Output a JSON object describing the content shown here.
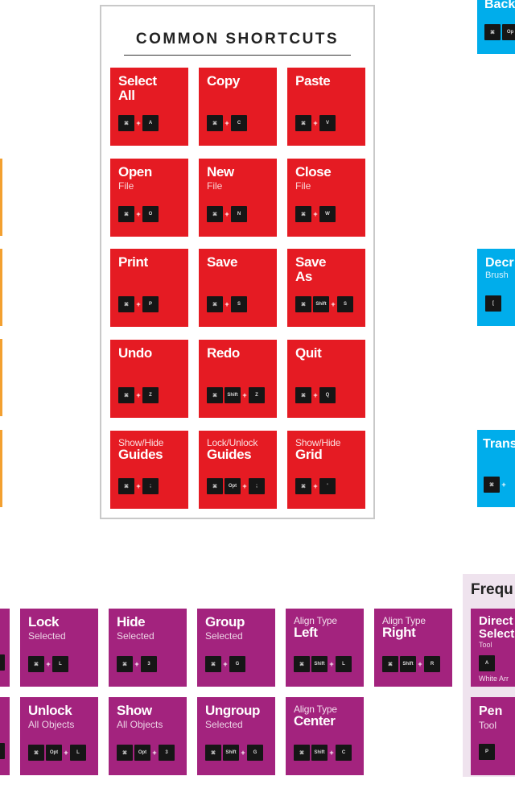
{
  "common": {
    "title": "COMMON SHORTCUTS",
    "tiles": [
      {
        "title": "Select All",
        "keys": [
          "⌘",
          "A"
        ]
      },
      {
        "title": "Copy",
        "keys": [
          "⌘",
          "C"
        ]
      },
      {
        "title": "Paste",
        "keys": [
          "⌘",
          "V"
        ]
      },
      {
        "title": "Open",
        "sub": "File",
        "keys": [
          "⌘",
          "O"
        ]
      },
      {
        "title": "New",
        "sub": "File",
        "keys": [
          "⌘",
          "N"
        ]
      },
      {
        "title": "Close",
        "sub": "File",
        "keys": [
          "⌘",
          "W"
        ]
      },
      {
        "title": "Print",
        "keys": [
          "⌘",
          "P"
        ]
      },
      {
        "title": "Save",
        "keys": [
          "⌘",
          "S"
        ]
      },
      {
        "title": "Save As",
        "keys": [
          "⌘",
          "Shift",
          "S"
        ]
      },
      {
        "title": "Undo",
        "keys": [
          "⌘",
          "Z"
        ]
      },
      {
        "title": "Redo",
        "keys": [
          "⌘",
          "Shift",
          "Z"
        ]
      },
      {
        "title": "Quit",
        "keys": [
          "⌘",
          "Q"
        ]
      },
      {
        "small": "Show/Hide",
        "title": "Guides",
        "keys": [
          "⌘",
          ";"
        ]
      },
      {
        "small": "Lock/Unlock",
        "title": "Guides",
        "keys": [
          "⌘",
          "Opt",
          ";"
        ]
      },
      {
        "small": "Show/Hide",
        "title": "Grid",
        "keys": [
          "⌘",
          "'"
        ]
      }
    ]
  },
  "objects": {
    "tiles": [
      {
        "title": "Lock",
        "sub": "Selected",
        "keys": [
          "⌘",
          "L"
        ]
      },
      {
        "title": "Hide",
        "sub": "Selected",
        "keys": [
          "⌘",
          "3"
        ]
      },
      {
        "title": "Group",
        "sub": "Selected",
        "keys": [
          "⌘",
          "G"
        ]
      },
      {
        "small": "Align Type",
        "title": "Left",
        "keys": [
          "⌘",
          "Shift",
          "L"
        ]
      },
      {
        "small": "Align Type",
        "title": "Right",
        "keys": [
          "⌘",
          "Shift",
          "R"
        ]
      },
      {
        "title": "Unlock",
        "sub": "All Objects",
        "keys": [
          "⌘",
          "Opt",
          "L"
        ]
      },
      {
        "title": "Show",
        "sub": "All Objects",
        "keys": [
          "⌘",
          "Opt",
          "3"
        ]
      },
      {
        "title": "Ungroup",
        "sub": "Selected",
        "keys": [
          "⌘",
          "Shift",
          "G"
        ]
      },
      {
        "small": "Align Type",
        "title": "Center",
        "keys": [
          "⌘",
          "Shift",
          "C"
        ]
      }
    ]
  },
  "edge": {
    "blue_1": "Back",
    "blue_2_title": "Decr",
    "blue_2_sub": "Brush",
    "blue_2_key": "[",
    "blue_3_title": "Trans",
    "freq_title": "Frequ",
    "freq_tile1_title": "Direct Select",
    "freq_tile1_sub": "Tool",
    "freq_tile1_key": "A",
    "freq_tile1_caption": "White Arr",
    "freq_tile2_title": "Pen",
    "freq_tile2_sub": "Tool",
    "freq_tile2_key": "P"
  },
  "colors": {
    "red": "#e51b23",
    "purple": "#a3237e",
    "blue": "#00adeb",
    "orange": "#f3a030"
  }
}
